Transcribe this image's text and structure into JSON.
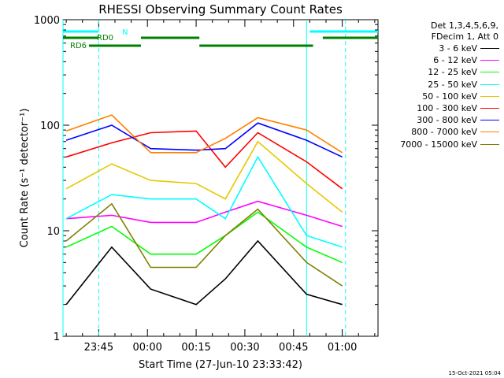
{
  "chart_data": {
    "type": "line",
    "title": "RHESSI Observing Summary Count Rates",
    "xlabel": "Start Time (27-Jun-10 23:33:42)",
    "ylabel": "Count Rate (s⁻¹ detector⁻¹)",
    "y_scale": "log",
    "ylim": [
      1,
      1000
    ],
    "y_ticks": [
      "1",
      "10",
      "100",
      "1000"
    ],
    "xlim_minutes": [
      -15,
      82
    ],
    "x_ticks": [
      "23:45",
      "00:00",
      "00:15",
      "00:30",
      "00:45",
      "01:00"
    ],
    "legend_header": [
      "Det 1,3,4,5,6,9,",
      "FDecim 1, Att 0"
    ],
    "legend_placement": "right, outside plot",
    "series": [
      {
        "name": "3 - 6 keV",
        "color": "#000000",
        "values": [
          [
            -14,
            2.0
          ],
          [
            0,
            7.0
          ],
          [
            12,
            2.8
          ],
          [
            26,
            2.0
          ],
          [
            35,
            3.5
          ],
          [
            45,
            8.0
          ],
          [
            60,
            2.5
          ],
          [
            71,
            2.0
          ]
        ]
      },
      {
        "name": "6 - 12 keV",
        "color": "#ff00ff",
        "values": [
          [
            -14,
            13
          ],
          [
            0,
            14
          ],
          [
            12,
            12
          ],
          [
            26,
            12
          ],
          [
            35,
            15
          ],
          [
            45,
            19
          ],
          [
            60,
            14
          ],
          [
            71,
            11
          ]
        ]
      },
      {
        "name": "12 - 25 keV",
        "color": "#00ff00",
        "values": [
          [
            -14,
            7
          ],
          [
            0,
            11
          ],
          [
            12,
            6
          ],
          [
            26,
            6
          ],
          [
            35,
            9
          ],
          [
            45,
            15
          ],
          [
            60,
            7
          ],
          [
            71,
            5
          ]
        ]
      },
      {
        "name": "25 - 50 keV",
        "color": "#00ffff",
        "values": [
          [
            -14,
            13
          ],
          [
            0,
            22
          ],
          [
            12,
            20
          ],
          [
            26,
            20
          ],
          [
            35,
            13
          ],
          [
            45,
            50
          ],
          [
            60,
            9
          ],
          [
            71,
            7
          ]
        ]
      },
      {
        "name": "50 - 100 keV",
        "color": "#e6c800",
        "values": [
          [
            -14,
            25
          ],
          [
            0,
            43
          ],
          [
            12,
            30
          ],
          [
            26,
            28
          ],
          [
            35,
            20
          ],
          [
            45,
            70
          ],
          [
            60,
            28
          ],
          [
            71,
            15
          ]
        ]
      },
      {
        "name": "100 - 300 keV",
        "color": "#ff0000",
        "values": [
          [
            -14,
            50
          ],
          [
            0,
            68
          ],
          [
            12,
            85
          ],
          [
            26,
            88
          ],
          [
            35,
            40
          ],
          [
            45,
            85
          ],
          [
            60,
            45
          ],
          [
            71,
            25
          ]
        ]
      },
      {
        "name": "300 - 800 keV",
        "color": "#0000ff",
        "values": [
          [
            -14,
            72
          ],
          [
            0,
            100
          ],
          [
            12,
            60
          ],
          [
            26,
            58
          ],
          [
            35,
            60
          ],
          [
            45,
            105
          ],
          [
            60,
            72
          ],
          [
            71,
            50
          ]
        ]
      },
      {
        "name": "800 - 7000 keV",
        "color": "#ff8000",
        "values": [
          [
            -14,
            88
          ],
          [
            0,
            125
          ],
          [
            12,
            55
          ],
          [
            26,
            55
          ],
          [
            35,
            75
          ],
          [
            45,
            118
          ],
          [
            60,
            90
          ],
          [
            71,
            55
          ]
        ]
      },
      {
        "name": "7000 - 15000 keV",
        "color": "#808000",
        "values": [
          [
            -14,
            8
          ],
          [
            0,
            18
          ],
          [
            12,
            4.5
          ],
          [
            26,
            4.5
          ],
          [
            35,
            9
          ],
          [
            45,
            16
          ],
          [
            60,
            5
          ],
          [
            71,
            3
          ]
        ]
      }
    ],
    "annotations": {
      "N": {
        "label": "N",
        "color": "#00ffff",
        "intervals": [
          [
            -15,
            -4
          ],
          [
            61,
            82
          ]
        ]
      },
      "RD0": {
        "label": "RD0",
        "color": "#008000",
        "intervals": [
          [
            -15,
            -4
          ],
          [
            9,
            27
          ],
          [
            65,
            82
          ]
        ]
      },
      "RD6": {
        "label": "RD6",
        "color": "#008000",
        "intervals": [
          [
            -7,
            9
          ],
          [
            27,
            62
          ]
        ]
      },
      "night_lines_min": [
        -15,
        60
      ],
      "saa_lines_min": [
        -4,
        72
      ]
    }
  },
  "footer": "15-Oct-2021 05:04"
}
